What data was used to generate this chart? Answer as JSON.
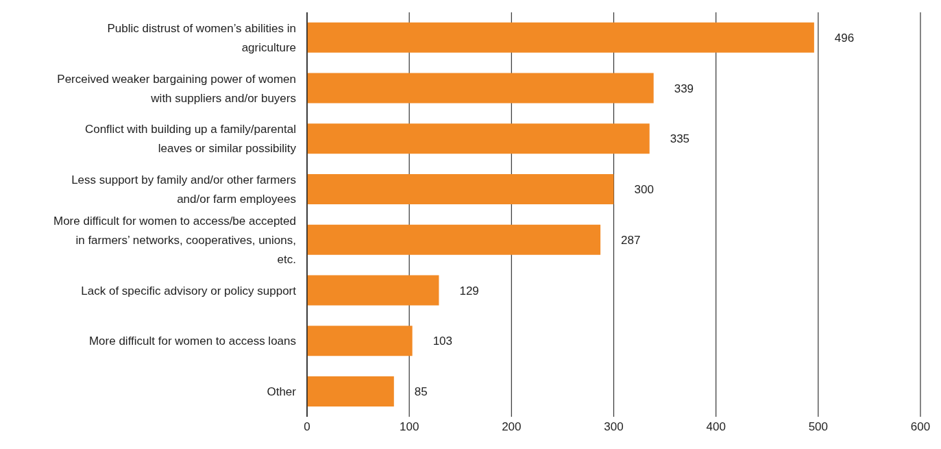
{
  "chart_data": {
    "type": "bar",
    "orientation": "horizontal",
    "categories": [
      "Public distrust of women’s abilities in agriculture",
      "Perceived weaker bargaining power of women with suppliers and/or buyers",
      "Conflict with building up a family/parental leaves or similar possibility",
      "Less support by family and/or other farmers and/or farm employees",
      "More difficult for women to access/be accepted in farmers’ networks, cooperatives, unions, etc.",
      "Lack of specific advisory or policy support",
      "More difficult for women to access loans",
      "Other"
    ],
    "values": [
      496,
      339,
      335,
      300,
      287,
      129,
      103,
      85
    ],
    "color": "#f28a25",
    "xlim": [
      0,
      600
    ],
    "xticks": [
      0,
      100,
      200,
      300,
      400,
      500,
      600
    ],
    "grid": "x",
    "data_labels": true
  }
}
